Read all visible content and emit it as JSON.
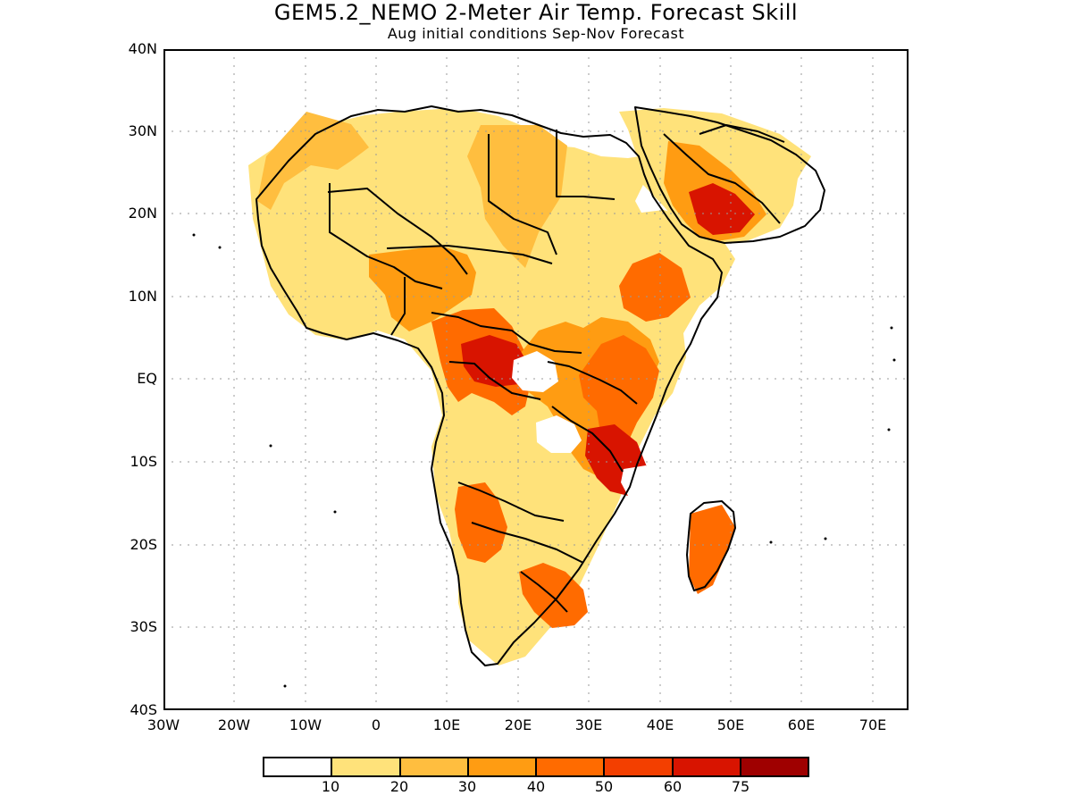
{
  "header": {
    "title": "GEM5.2_NEMO 2-Meter Air Temp. Forecast Skill",
    "subtitle": "Aug initial conditions  Sep-Nov Forecast"
  },
  "axes": {
    "y_labels": [
      "40N",
      "30N",
      "20N",
      "10N",
      "EQ",
      "10S",
      "20S",
      "30S",
      "40S"
    ],
    "x_labels": [
      "30W",
      "20W",
      "10W",
      "0",
      "10E",
      "20E",
      "30E",
      "40E",
      "50E",
      "60E",
      "70E"
    ]
  },
  "legend": {
    "ticks": [
      "10",
      "20",
      "30",
      "40",
      "50",
      "60",
      "75"
    ],
    "colors": [
      "#ffffff",
      "#ffe27a",
      "#ffbe3f",
      "#ff9c12",
      "#ff6b00",
      "#f33f00",
      "#d81400",
      "#9f0000"
    ]
  },
  "map": {
    "region": "Africa and Arabia",
    "grid": "dotted",
    "legend_position": "bottom-center"
  }
}
